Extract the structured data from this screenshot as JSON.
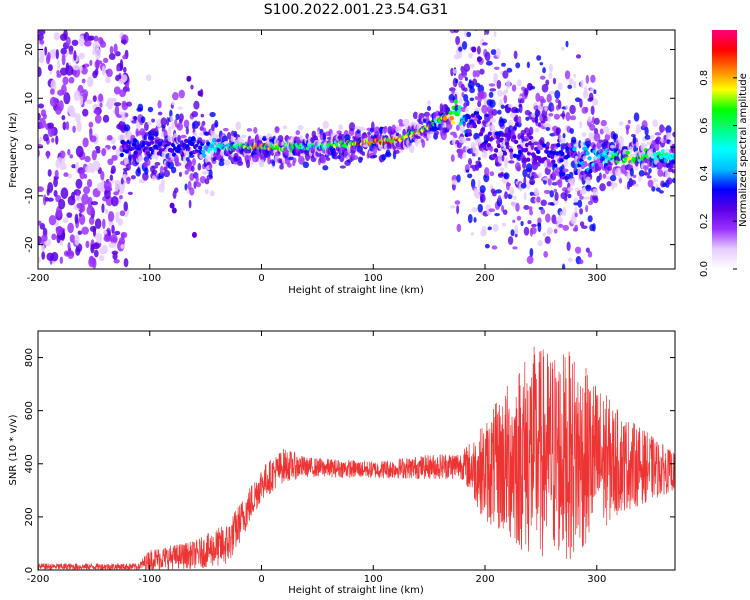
{
  "title": "S100.2022.001.23.54.G31",
  "chart_data": [
    {
      "type": "heatmap",
      "xlabel": "Height of straight line (km)",
      "ylabel": "Frequency (Hz)",
      "xlim": [
        -200,
        370
      ],
      "ylim": [
        -25,
        24
      ],
      "xticks": [
        -200,
        -100,
        0,
        100,
        200,
        300
      ],
      "yticks": [
        -20,
        -10,
        0,
        10,
        20
      ],
      "colorbar": {
        "label": "Normalized spectral amplitude",
        "range": [
          0,
          1
        ],
        "ticks": [
          "0.0",
          "0.2",
          "0.4",
          "0.6",
          "0.8"
        ],
        "colormap": [
          "#ffffff",
          "#e6ccff",
          "#9b30ff",
          "#5a00e6",
          "#0000ff",
          "#00bfff",
          "#00ffff",
          "#00ff7f",
          "#00ff00",
          "#ffff00",
          "#ff7f00",
          "#ff0000",
          "#ff0080"
        ]
      },
      "ridge": {
        "x": [
          -120,
          -60,
          -40,
          0,
          50,
          90,
          120,
          140,
          155,
          170,
          185,
          200,
          250,
          300,
          330,
          370
        ],
        "y": [
          0,
          0,
          0,
          0,
          0,
          0.8,
          1.5,
          3,
          5,
          7,
          6,
          2,
          -1,
          -2,
          -2,
          -2
        ],
        "amplitude": [
          0.35,
          0.35,
          0.55,
          0.9,
          0.6,
          0.95,
          0.9,
          0.85,
          0.75,
          0.85,
          0.4,
          0.3,
          0.3,
          0.5,
          0.8,
          0.55
        ]
      },
      "noise_region": {
        "x_range": [
          -200,
          -120
        ],
        "freq_range": [
          -24,
          24
        ]
      }
    },
    {
      "type": "line",
      "xlabel": "Height of straight line (km)",
      "ylabel": "SNR (10 * v/v)",
      "xlim": [
        -200,
        370
      ],
      "ylim": [
        0,
        900
      ],
      "xticks": [
        -200,
        -100,
        0,
        100,
        200,
        300
      ],
      "yticks": [
        0,
        200,
        400,
        600,
        800
      ],
      "color": "#ee3333",
      "envelope": {
        "x": [
          -200,
          -110,
          -100,
          -60,
          -30,
          0,
          20,
          40,
          100,
          180,
          200,
          240,
          280,
          320,
          370
        ],
        "upper": [
          25,
          25,
          80,
          110,
          180,
          390,
          460,
          425,
          410,
          450,
          560,
          850,
          820,
          600,
          440
        ],
        "lower": [
          0,
          0,
          0,
          5,
          15,
          260,
          330,
          350,
          345,
          340,
          180,
          40,
          40,
          210,
          300
        ]
      }
    }
  ]
}
